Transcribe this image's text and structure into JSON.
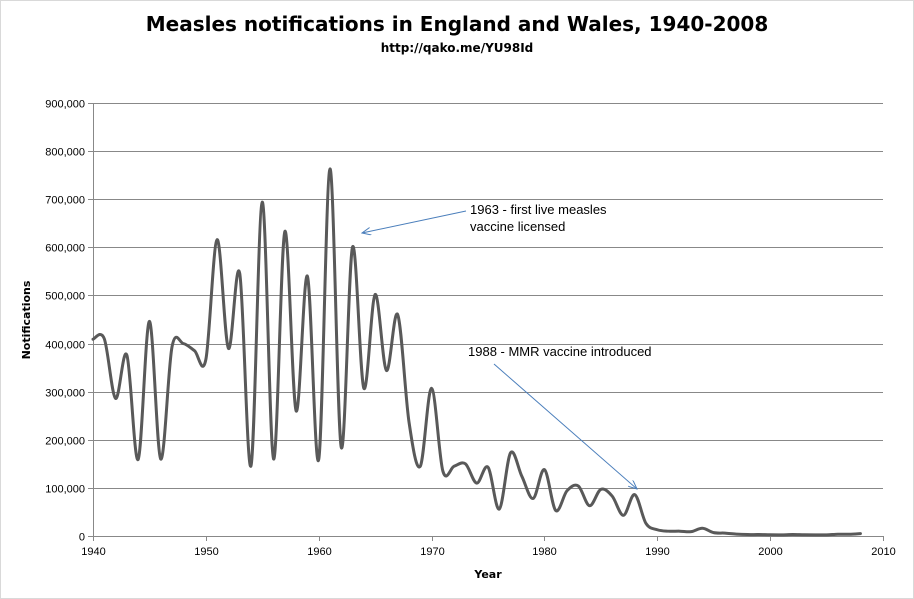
{
  "chart_data": {
    "type": "line",
    "title": "Measles notifications in England and Wales, 1940-2008",
    "subtitle": "http://qako.me/YU98Id",
    "xlabel": "Year",
    "ylabel": "Notifications",
    "xlim": [
      1940,
      2010
    ],
    "ylim": [
      0,
      900000
    ],
    "x_ticks": [
      1940,
      1950,
      1960,
      1970,
      1980,
      1990,
      2000,
      2010
    ],
    "y_ticks": [
      0,
      100000,
      200000,
      300000,
      400000,
      500000,
      600000,
      700000,
      800000,
      900000
    ],
    "y_tick_labels": [
      "0",
      "100,000",
      "200,000",
      "300,000",
      "400,000",
      "500,000",
      "600,000",
      "700,000",
      "800,000",
      "900,000"
    ],
    "grid": "horizontal",
    "line_color": "#595959",
    "series": [
      {
        "x": [
          1940,
          1941,
          1942,
          1943,
          1944,
          1945,
          1946,
          1947,
          1948,
          1949,
          1950,
          1951,
          1952,
          1953,
          1954,
          1955,
          1956,
          1957,
          1958,
          1959,
          1960,
          1961,
          1962,
          1963,
          1964,
          1965,
          1966,
          1967,
          1968,
          1969,
          1970,
          1971,
          1972,
          1973,
          1974,
          1975,
          1976,
          1977,
          1978,
          1979,
          1980,
          1981,
          1982,
          1983,
          1984,
          1985,
          1986,
          1987,
          1988,
          1989,
          1990,
          1991,
          1992,
          1993,
          1994,
          1995,
          1996,
          1997,
          1998,
          1999,
          2000,
          2001,
          2002,
          2003,
          2004,
          2005,
          2006,
          2007,
          2008
        ],
        "values": [
          409000,
          410000,
          286000,
          376000,
          159000,
          446000,
          160000,
          393000,
          400000,
          385000,
          367000,
          616000,
          390000,
          546000,
          146000,
          694000,
          160000,
          633000,
          260000,
          540000,
          159000,
          763000,
          184000,
          601000,
          307000,
          502000,
          344000,
          460000,
          237000,
          145000,
          307000,
          135000,
          145000,
          150000,
          110000,
          143000,
          56000,
          173000,
          124000,
          78000,
          138000,
          53000,
          94000,
          104000,
          63000,
          97000,
          83000,
          43000,
          86000,
          26000,
          13000,
          10000,
          10000,
          9000,
          16000,
          7000,
          6000,
          4000,
          3000,
          3000,
          2500,
          2400,
          3000,
          2500,
          2400,
          2300,
          3700,
          3700,
          5000
        ]
      }
    ],
    "annotations": [
      {
        "line1": "1963  - first live measles",
        "line2": "vaccine licensed",
        "points_to": [
          1963,
          630000
        ]
      },
      {
        "line1": "1988 - MMR vaccine introduced",
        "line2": "",
        "points_to": [
          1988,
          92000
        ]
      }
    ]
  }
}
